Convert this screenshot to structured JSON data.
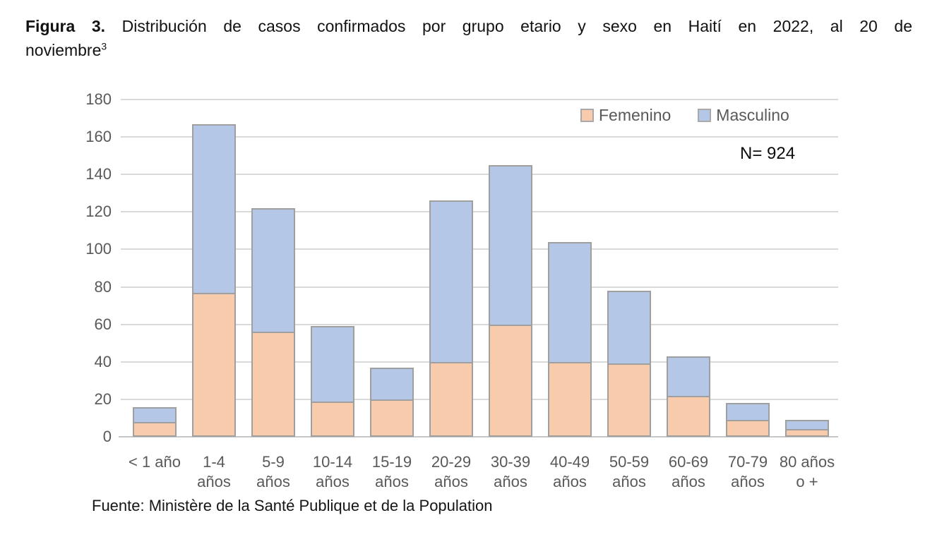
{
  "figure": {
    "title_prefix": "Figura 3.",
    "title_rest": "Distribución de casos confirmados por grupo etario y sexo en Haití en 2022, al 20 de",
    "title_line2": "noviembre",
    "title_footnote": "3",
    "sample_size": "N= 924",
    "source": "Fuente: Ministère de la Santé Publique et de la Population"
  },
  "colors": {
    "femenino": "#F8CBAD",
    "masculino": "#B4C7E7",
    "bar_border": "#9F9F9F",
    "gridline": "#D9D9D9",
    "axis_text": "#595959",
    "annotation_text": "#000000"
  },
  "chart_data": {
    "type": "bar",
    "stacked": true,
    "title": "Figura 3. Distribución de casos confirmados por grupo etario y sexo en Haití en 2022, al 20 de noviembre³",
    "categories": [
      "< 1 año",
      "1-4 años",
      "5-9 años",
      "10-14 años",
      "15-19 años",
      "20-29 años",
      "30-39 años",
      "40-49 años",
      "50-59 años",
      "60-69 años",
      "70-79 años",
      "80 años o +"
    ],
    "categories_display": [
      [
        "< 1 año"
      ],
      [
        "1-4",
        "años"
      ],
      [
        "5-9",
        "años"
      ],
      [
        "10-14",
        "años"
      ],
      [
        "15-19",
        "años"
      ],
      [
        "20-29",
        "años"
      ],
      [
        "30-39",
        "años"
      ],
      [
        "40-49",
        "años"
      ],
      [
        "50-59",
        "años"
      ],
      [
        "60-69",
        "años"
      ],
      [
        "70-79",
        "años"
      ],
      [
        "80 años",
        "o +"
      ]
    ],
    "series": [
      {
        "name": "Femenino",
        "color": "#F8CBAD",
        "values": [
          8,
          77,
          56,
          19,
          20,
          40,
          60,
          40,
          39,
          22,
          9,
          4
        ]
      },
      {
        "name": "Masculino",
        "color": "#B4C7E7",
        "values": [
          8,
          90,
          66,
          40,
          17,
          86,
          85,
          64,
          39,
          21,
          9,
          5
        ]
      }
    ],
    "totals": [
      16,
      167,
      122,
      59,
      37,
      126,
      145,
      104,
      78,
      43,
      18,
      9
    ],
    "annotation": "N= 924",
    "xlabel": "",
    "ylabel": "",
    "ylim": [
      0,
      180
    ],
    "y_ticks": [
      0,
      20,
      40,
      60,
      80,
      100,
      120,
      140,
      160,
      180
    ],
    "grid": true,
    "legend_position": "top-right"
  }
}
